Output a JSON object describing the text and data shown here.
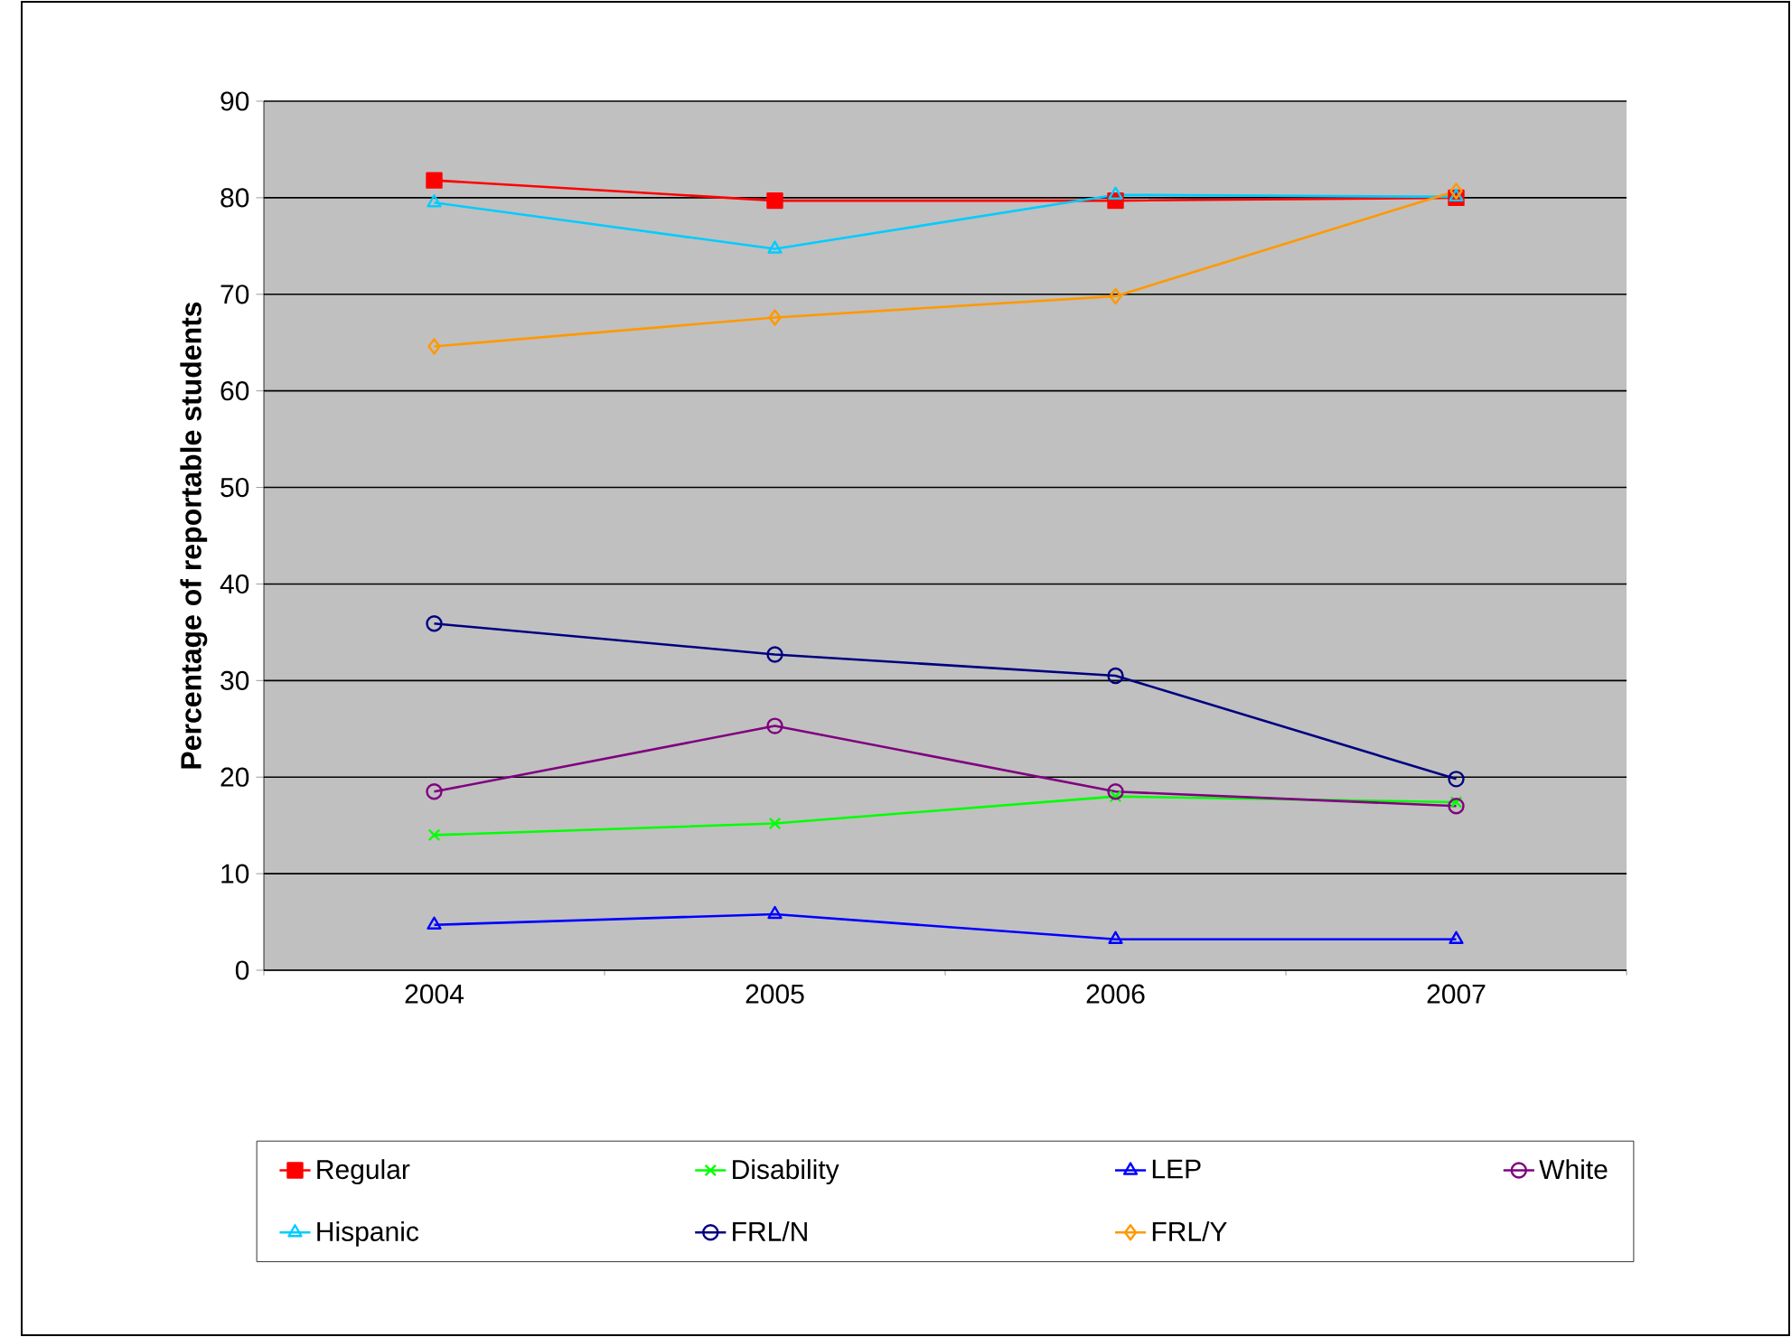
{
  "chart_data": {
    "type": "line",
    "ylabel": "Percentage of reportable students",
    "categories": [
      "2004",
      "2005",
      "2006",
      "2007"
    ],
    "ylim": [
      0,
      90
    ],
    "yticks": [
      0,
      10,
      20,
      30,
      40,
      50,
      60,
      70,
      80,
      90
    ],
    "grid": "y",
    "legend": "bottom",
    "series": [
      {
        "name": "Regular",
        "color": "#ff0000",
        "marker": "square",
        "values": [
          81.8,
          79.7,
          79.7,
          80.0
        ]
      },
      {
        "name": "Disability",
        "color": "#00ff00",
        "marker": "cross",
        "values": [
          14.0,
          15.2,
          18.0,
          17.4
        ]
      },
      {
        "name": "LEP",
        "color": "#0000ff",
        "marker": "triangle",
        "values": [
          4.7,
          5.8,
          3.2,
          3.2
        ]
      },
      {
        "name": "White",
        "color": "#800080",
        "marker": "circle",
        "values": [
          18.5,
          25.3,
          18.5,
          17.0
        ]
      },
      {
        "name": "Hispanic",
        "color": "#00ccff",
        "marker": "triangle",
        "values": [
          79.5,
          74.7,
          80.3,
          80.1
        ]
      },
      {
        "name": "FRL/N",
        "color": "#000080",
        "marker": "circle",
        "values": [
          35.9,
          32.7,
          30.5,
          19.8
        ]
      },
      {
        "name": "FRL/Y",
        "color": "#ff9900",
        "marker": "diamond",
        "values": [
          64.6,
          67.6,
          69.8,
          80.7
        ]
      }
    ]
  }
}
